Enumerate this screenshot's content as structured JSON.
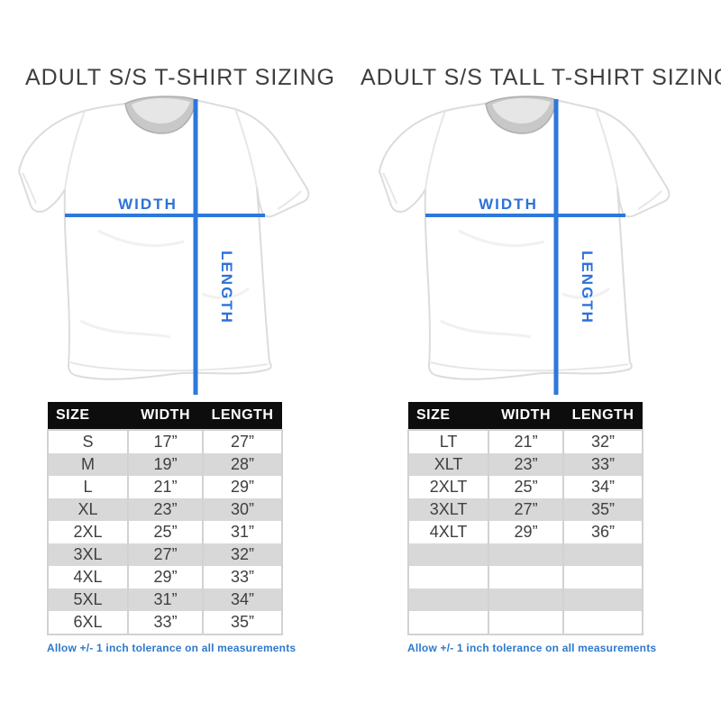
{
  "colors": {
    "accent_blue": "#2d78dc",
    "label_blue": "#2d72d9",
    "footnote_blue": "#2f79cc",
    "table_header_bg": "#0d0d0d",
    "table_header_text": "#ffffff",
    "row_alt_bg": "#d8d8d8",
    "text_dark": "#3f3f3f",
    "background": "#ffffff"
  },
  "sections": [
    {
      "title": "ADULT S/S T-SHIRT SIZING",
      "diagram": {
        "width_label": "WIDTH",
        "length_label": "LENGTH"
      },
      "table": {
        "headers": [
          "SIZE",
          "WIDTH",
          "LENGTH"
        ],
        "rows": [
          [
            "S",
            "17”",
            "27”"
          ],
          [
            "M",
            "19”",
            "28”"
          ],
          [
            "L",
            "21”",
            "29”"
          ],
          [
            "XL",
            "23”",
            "30”"
          ],
          [
            "2XL",
            "25”",
            "31”"
          ],
          [
            "3XL",
            "27”",
            "32”"
          ],
          [
            "4XL",
            "29”",
            "33”"
          ],
          [
            "5XL",
            "31”",
            "34”"
          ],
          [
            "6XL",
            "33”",
            "35”"
          ]
        ]
      },
      "footnote": "Allow +/- 1 inch tolerance on all measurements"
    },
    {
      "title": "ADULT S/S TALL T-SHIRT SIZING",
      "diagram": {
        "width_label": "WIDTH",
        "length_label": "LENGTH"
      },
      "table": {
        "headers": [
          "SIZE",
          "WIDTH",
          "LENGTH"
        ],
        "rows": [
          [
            "LT",
            "21”",
            "32”"
          ],
          [
            "XLT",
            "23”",
            "33”"
          ],
          [
            "2XLT",
            "25”",
            "34”"
          ],
          [
            "3XLT",
            "27”",
            "35”"
          ],
          [
            "4XLT",
            "29”",
            "36”"
          ],
          [
            "",
            "",
            ""
          ],
          [
            "",
            "",
            ""
          ],
          [
            "",
            "",
            ""
          ],
          [
            "",
            "",
            ""
          ]
        ]
      },
      "footnote": "Allow +/- 1 inch tolerance on all measurements"
    }
  ]
}
